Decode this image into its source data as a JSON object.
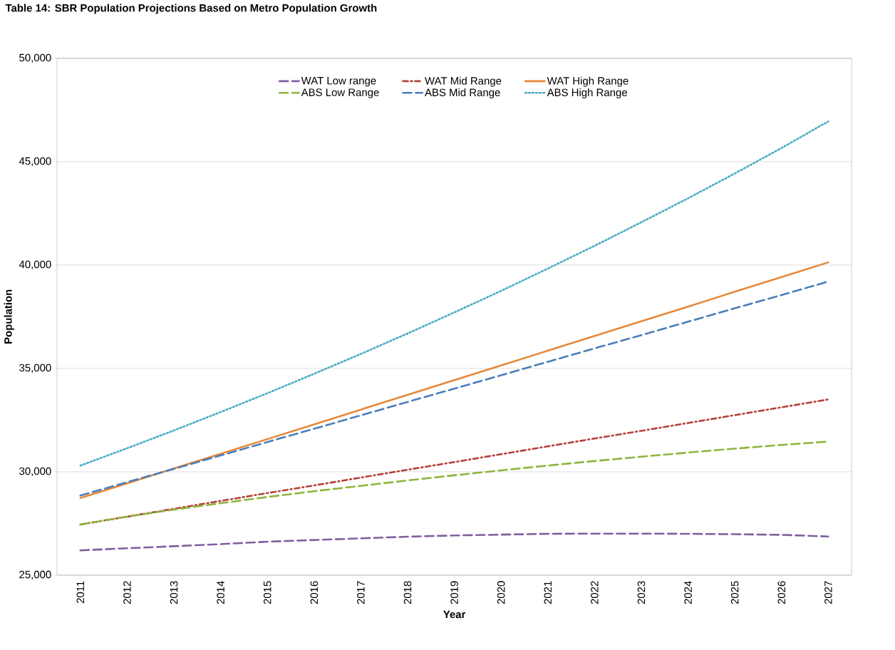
{
  "chart_data": {
    "type": "line",
    "title": "Table 14: SBR Population Projections Based on Metro Population Growth",
    "xlabel": "Year",
    "ylabel": "Population",
    "categories": [
      "2011",
      "2012",
      "2013",
      "2014",
      "2015",
      "2016",
      "2017",
      "2018",
      "2019",
      "2020",
      "2021",
      "2022",
      "2023",
      "2024",
      "2025",
      "2026",
      "2027"
    ],
    "ylim": [
      25000,
      50000
    ],
    "yticks": [
      {
        "value": 25000,
        "label": "25,000"
      },
      {
        "value": 30000,
        "label": "30,000"
      },
      {
        "value": 35000,
        "label": "35,000"
      },
      {
        "value": 40000,
        "label": "40,000"
      },
      {
        "value": 45000,
        "label": "45,000"
      },
      {
        "value": 50000,
        "label": "50,000"
      }
    ],
    "grid": "y",
    "legend": "top",
    "series": [
      {
        "name": "WAT Low range",
        "color": "#7f5fa0",
        "line_style": "dashed",
        "values": [
          26200,
          26300,
          26400,
          26500,
          26620,
          26700,
          26780,
          26860,
          26920,
          26960,
          27000,
          27010,
          27010,
          27000,
          26980,
          26950,
          26870
        ]
      },
      {
        "name": "WAT Mid Range",
        "color": "#b4403c",
        "line_style": "dashdot",
        "values": [
          27450,
          27830,
          28210,
          28590,
          28970,
          29340,
          29720,
          30100,
          30470,
          30850,
          31230,
          31610,
          31980,
          32360,
          32740,
          33120,
          33500
        ]
      },
      {
        "name": "WAT High Range",
        "color": "#e6883a",
        "line_style": "solid",
        "values": [
          28730,
          29440,
          30160,
          30870,
          31580,
          32290,
          33010,
          33720,
          34430,
          35140,
          35860,
          36570,
          37280,
          37990,
          38710,
          39420,
          40130
        ]
      },
      {
        "name": "ABS Low Range",
        "color": "#8db43c",
        "line_style": "dashed",
        "values": [
          27450,
          27830,
          28170,
          28480,
          28780,
          29060,
          29320,
          29580,
          29830,
          30070,
          30300,
          30520,
          30730,
          30930,
          31120,
          31300,
          31460
        ]
      },
      {
        "name": "ABS Mid Range",
        "color": "#4a7ebb",
        "line_style": "dashed",
        "values": [
          28850,
          29500,
          30140,
          30790,
          31440,
          32080,
          32730,
          33380,
          34020,
          34670,
          35320,
          35970,
          36610,
          37260,
          37910,
          38550,
          39200
        ]
      },
      {
        "name": "ABS High Range",
        "color": "#4aacc6",
        "line_style": "dotted",
        "values": [
          30300,
          31140,
          32000,
          32890,
          33800,
          34740,
          35700,
          36690,
          37710,
          38750,
          39830,
          40930,
          42070,
          43230,
          44430,
          45660,
          46950
        ]
      }
    ]
  }
}
